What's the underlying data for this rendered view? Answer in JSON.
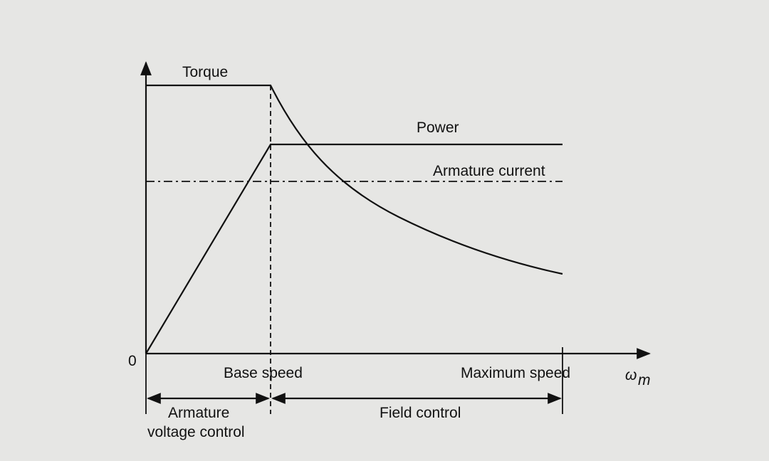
{
  "diagram": {
    "labels": {
      "torque": "Torque",
      "power": "Power",
      "armature_current": "Armature current",
      "origin": "0",
      "base_speed": "Base speed",
      "maximum_speed": "Maximum speed",
      "axis_symbol": "ω",
      "axis_subscript": "m",
      "armature_control_line1": "Armature",
      "armature_control_line2": "voltage control",
      "field_control": "Field control"
    }
  }
}
